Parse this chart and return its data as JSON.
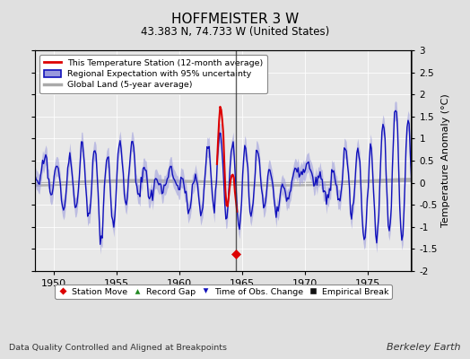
{
  "title": "HOFFMEISTER 3 W",
  "subtitle": "43.383 N, 74.733 W (United States)",
  "xlabel_note": "Data Quality Controlled and Aligned at Breakpoints",
  "credit": "Berkeley Earth",
  "ylim": [
    -2,
    3
  ],
  "yticks": [
    -2,
    -1.5,
    -1,
    -0.5,
    0,
    0.5,
    1,
    1.5,
    2,
    2.5,
    3
  ],
  "xlim": [
    1948.5,
    1978.5
  ],
  "xticks": [
    1950,
    1955,
    1960,
    1965,
    1970,
    1975
  ],
  "ylabel": "Temperature Anomaly (°C)",
  "bg_color": "#e0e0e0",
  "plot_bg_color": "#e8e8e8",
  "station_line_color": "#dd0000",
  "regional_line_color": "#1111bb",
  "regional_fill_color": "#9999dd",
  "global_line_color": "#aaaaaa",
  "vline_color": "#333333",
  "vline_x": 1964.5,
  "station_marker_x": 1964.5,
  "station_marker_y": -1.62,
  "station_marker_color": "#dd0000",
  "obs_marker_color": "#1111bb"
}
